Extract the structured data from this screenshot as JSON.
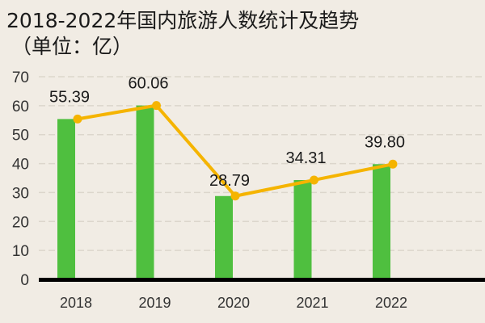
{
  "chart_data": {
    "type": "bar+line",
    "title": "2018-2022年国内旅游人数统计及趋势",
    "subtitle": "（单位：亿）",
    "categories": [
      "2018",
      "2019",
      "2020",
      "2021",
      "2022"
    ],
    "values": [
      55.39,
      60.06,
      28.79,
      34.31,
      39.8
    ],
    "data_labels": [
      "55.39",
      "60.06",
      "28.79",
      "34.31",
      "39.80"
    ],
    "ylim": [
      0,
      70
    ],
    "yticks": [
      0,
      10,
      20,
      30,
      40,
      50,
      60,
      70
    ],
    "grid": true,
    "legend": "none",
    "colors": {
      "bar": "#4fbf3f",
      "line": "#f5b400",
      "background": "#f1ece4",
      "axis": "#000000"
    }
  }
}
